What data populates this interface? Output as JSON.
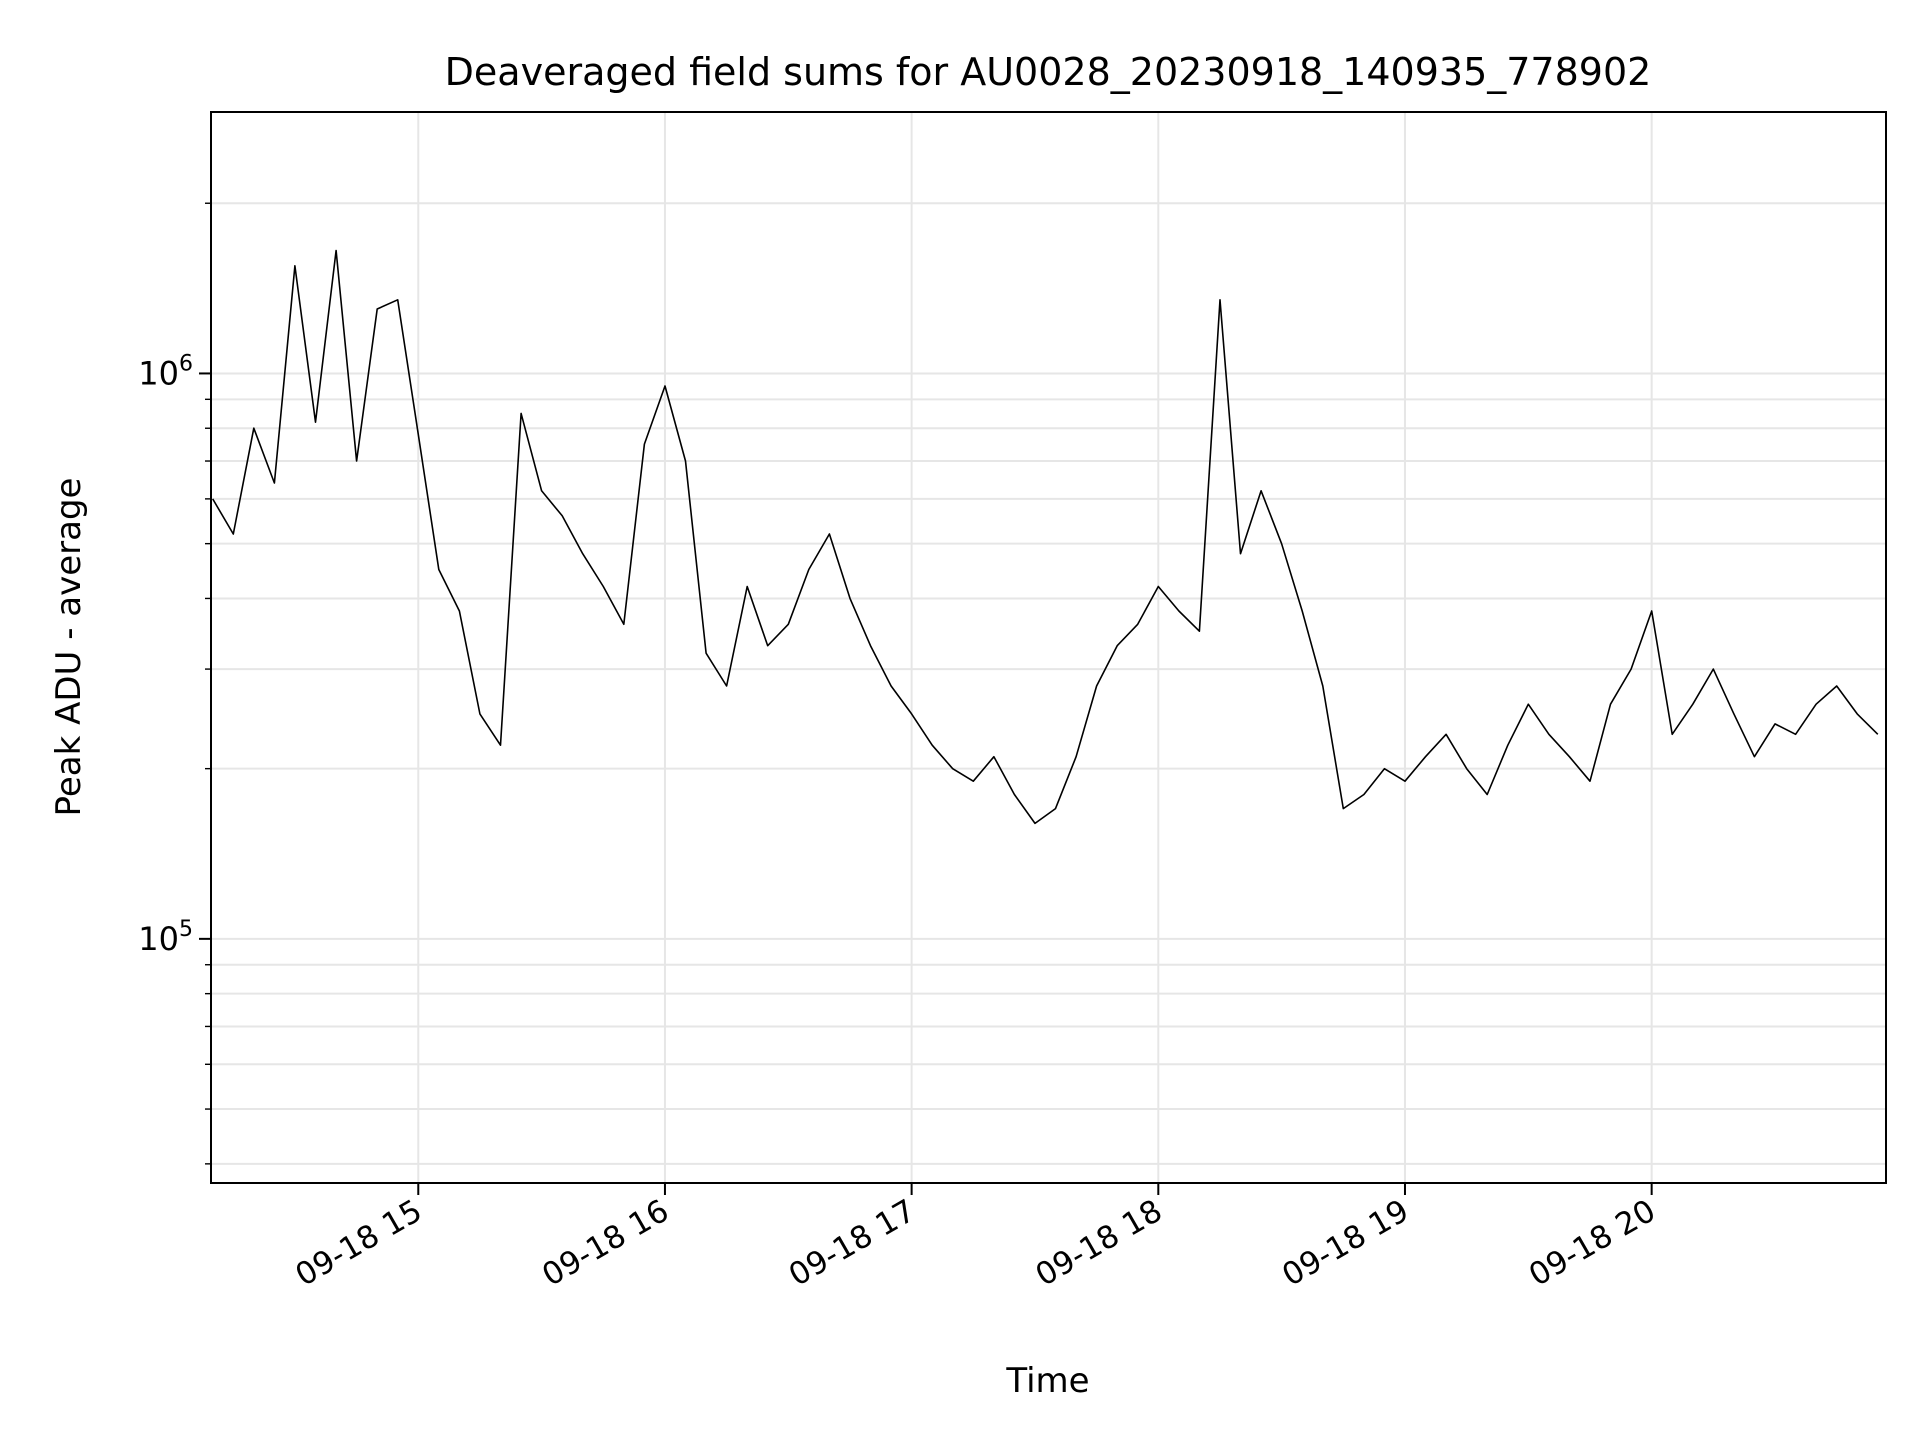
{
  "chart_data": {
    "type": "line",
    "title": "Deaveraged field sums for AU0028_20230918_140935_778902",
    "xlabel": "Time",
    "ylabel": "Peak ADU - average",
    "x_range": [
      "2023-09-18 14:09:35",
      "2023-09-18 20:57:00"
    ],
    "x_ticks": [
      {
        "time": "2023-09-18 15:00",
        "label": "09-18 15"
      },
      {
        "time": "2023-09-18 16:00",
        "label": "09-18 16"
      },
      {
        "time": "2023-09-18 17:00",
        "label": "09-18 17"
      },
      {
        "time": "2023-09-18 18:00",
        "label": "09-18 18"
      },
      {
        "time": "2023-09-18 19:00",
        "label": "09-18 19"
      },
      {
        "time": "2023-09-18 20:00",
        "label": "09-18 20"
      }
    ],
    "y_scale": "log",
    "ylim": [
      37000,
      2900000
    ],
    "y_ticks": [
      {
        "value": 100000,
        "base": "10",
        "exp": "5"
      },
      {
        "value": 1000000,
        "base": "10",
        "exp": "6"
      }
    ],
    "grid": true,
    "line_color": "#000000",
    "series": [
      {
        "points": [
          [
            "2023-09-18 14:10",
            600000
          ],
          [
            "2023-09-18 14:15",
            520000
          ],
          [
            "2023-09-18 14:20",
            800000
          ],
          [
            "2023-09-18 14:25",
            640000
          ],
          [
            "2023-09-18 14:30",
            1550000
          ],
          [
            "2023-09-18 14:35",
            820000
          ],
          [
            "2023-09-18 14:40",
            1650000
          ],
          [
            "2023-09-18 14:45",
            700000
          ],
          [
            "2023-09-18 14:50",
            1300000
          ],
          [
            "2023-09-18 14:55",
            1350000
          ],
          [
            "2023-09-18 15:00",
            780000
          ],
          [
            "2023-09-18 15:05",
            450000
          ],
          [
            "2023-09-18 15:10",
            380000
          ],
          [
            "2023-09-18 15:15",
            250000
          ],
          [
            "2023-09-18 15:20",
            220000
          ],
          [
            "2023-09-18 15:25",
            850000
          ],
          [
            "2023-09-18 15:30",
            620000
          ],
          [
            "2023-09-18 15:35",
            560000
          ],
          [
            "2023-09-18 15:40",
            480000
          ],
          [
            "2023-09-18 15:45",
            420000
          ],
          [
            "2023-09-18 15:50",
            360000
          ],
          [
            "2023-09-18 15:55",
            750000
          ],
          [
            "2023-09-18 16:00",
            950000
          ],
          [
            "2023-09-18 16:05",
            700000
          ],
          [
            "2023-09-18 16:10",
            320000
          ],
          [
            "2023-09-18 16:15",
            280000
          ],
          [
            "2023-09-18 16:20",
            420000
          ],
          [
            "2023-09-18 16:25",
            330000
          ],
          [
            "2023-09-18 16:30",
            360000
          ],
          [
            "2023-09-18 16:35",
            450000
          ],
          [
            "2023-09-18 16:40",
            520000
          ],
          [
            "2023-09-18 16:45",
            400000
          ],
          [
            "2023-09-18 16:50",
            330000
          ],
          [
            "2023-09-18 16:55",
            280000
          ],
          [
            "2023-09-18 17:00",
            250000
          ],
          [
            "2023-09-18 17:05",
            220000
          ],
          [
            "2023-09-18 17:10",
            200000
          ],
          [
            "2023-09-18 17:15",
            190000
          ],
          [
            "2023-09-18 17:20",
            210000
          ],
          [
            "2023-09-18 17:25",
            180000
          ],
          [
            "2023-09-18 17:30",
            160000
          ],
          [
            "2023-09-18 17:35",
            170000
          ],
          [
            "2023-09-18 17:40",
            210000
          ],
          [
            "2023-09-18 17:45",
            280000
          ],
          [
            "2023-09-18 17:50",
            330000
          ],
          [
            "2023-09-18 17:55",
            360000
          ],
          [
            "2023-09-18 18:00",
            420000
          ],
          [
            "2023-09-18 18:05",
            380000
          ],
          [
            "2023-09-18 18:10",
            350000
          ],
          [
            "2023-09-18 18:15",
            1350000
          ],
          [
            "2023-09-18 18:20",
            480000
          ],
          [
            "2023-09-18 18:25",
            620000
          ],
          [
            "2023-09-18 18:30",
            500000
          ],
          [
            "2023-09-18 18:35",
            380000
          ],
          [
            "2023-09-18 18:40",
            280000
          ],
          [
            "2023-09-18 18:45",
            170000
          ],
          [
            "2023-09-18 18:50",
            180000
          ],
          [
            "2023-09-18 18:55",
            200000
          ],
          [
            "2023-09-18 19:00",
            190000
          ],
          [
            "2023-09-18 19:05",
            210000
          ],
          [
            "2023-09-18 19:10",
            230000
          ],
          [
            "2023-09-18 19:15",
            200000
          ],
          [
            "2023-09-18 19:20",
            180000
          ],
          [
            "2023-09-18 19:25",
            220000
          ],
          [
            "2023-09-18 19:30",
            260000
          ],
          [
            "2023-09-18 19:35",
            230000
          ],
          [
            "2023-09-18 19:40",
            210000
          ],
          [
            "2023-09-18 19:45",
            190000
          ],
          [
            "2023-09-18 19:50",
            260000
          ],
          [
            "2023-09-18 19:55",
            300000
          ],
          [
            "2023-09-18 20:00",
            380000
          ],
          [
            "2023-09-18 20:05",
            230000
          ],
          [
            "2023-09-18 20:10",
            260000
          ],
          [
            "2023-09-18 20:15",
            300000
          ],
          [
            "2023-09-18 20:20",
            250000
          ],
          [
            "2023-09-18 20:25",
            210000
          ],
          [
            "2023-09-18 20:30",
            240000
          ],
          [
            "2023-09-18 20:35",
            230000
          ],
          [
            "2023-09-18 20:40",
            260000
          ],
          [
            "2023-09-18 20:45",
            280000
          ],
          [
            "2023-09-18 20:50",
            250000
          ],
          [
            "2023-09-18 20:55",
            230000
          ]
        ]
      }
    ]
  }
}
